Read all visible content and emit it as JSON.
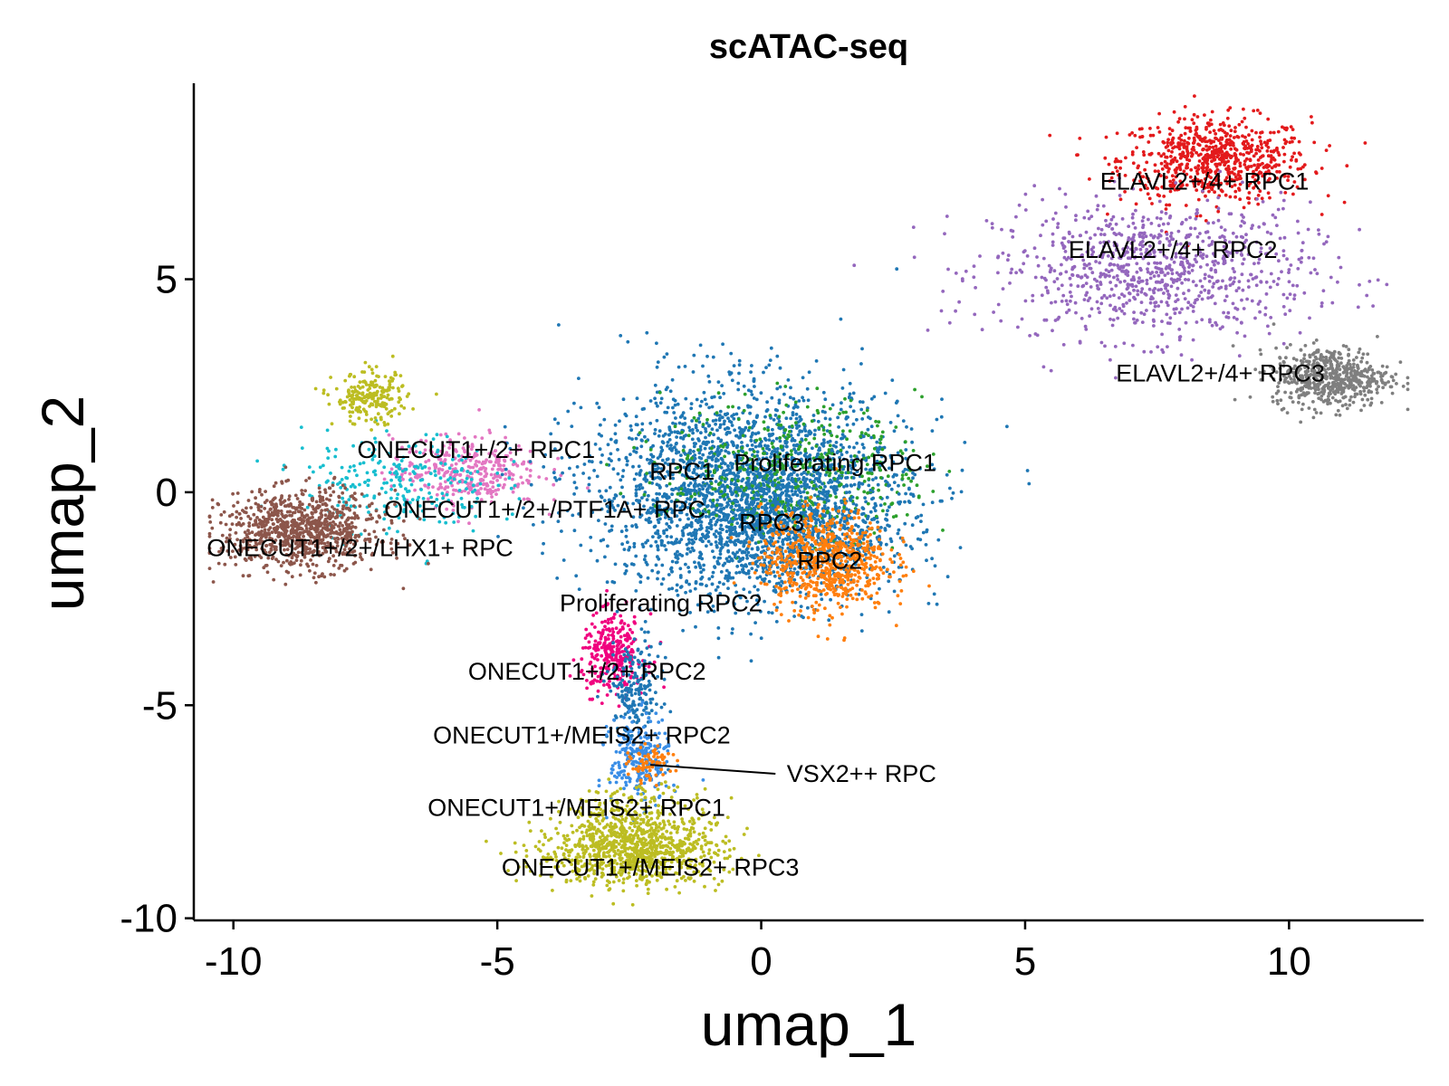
{
  "chart_data": {
    "type": "scatter",
    "title": "scATAC-seq",
    "xlabel": "umap_1",
    "ylabel": "umap_2",
    "xlim": [
      -10.75,
      12.55
    ],
    "ylim": [
      -10.05,
      9.6
    ],
    "x_ticks": [
      {
        "value": -10,
        "label": "-10"
      },
      {
        "value": -5,
        "label": "-5"
      },
      {
        "value": 0,
        "label": "0"
      },
      {
        "value": 5,
        "label": "5"
      },
      {
        "value": 10,
        "label": "10"
      }
    ],
    "y_ticks": [
      {
        "value": -10,
        "label": "-10"
      },
      {
        "value": -5,
        "label": "-5"
      },
      {
        "value": 0,
        "label": "0"
      },
      {
        "value": 5,
        "label": "5"
      }
    ],
    "grid": false,
    "legend": "none",
    "clusters": [
      {
        "name": "ELAVL2+/4+ RPC1",
        "color": "#e31a1c",
        "center": [
          8.6,
          7.8
        ],
        "spread": [
          0.9,
          0.5
        ],
        "n": 700
      },
      {
        "name": "ELAVL2+/4+ RPC2",
        "color": "#9467bd",
        "center": [
          7.4,
          5.2
        ],
        "spread": [
          1.5,
          0.8
        ],
        "n": 900
      },
      {
        "name": "ELAVL2+/4+ RPC3",
        "color": "#7f7f7f",
        "center": [
          10.8,
          2.7
        ],
        "spread": [
          0.55,
          0.35
        ],
        "n": 550
      },
      {
        "name": "ONECUT1+/2+ RPC1",
        "color": "#e377c2",
        "center": [
          -5.6,
          0.5
        ],
        "spread": [
          0.7,
          0.4
        ],
        "n": 350
      },
      {
        "name": "ONECUT1+/2+/PTF1A+ RPC",
        "color": "#17becf",
        "center": [
          -6.9,
          0.2
        ],
        "spread": [
          0.9,
          0.6
        ],
        "n": 250
      },
      {
        "name": "ONECUT1+/2+/LHX1+ RPC",
        "color": "#8c564b",
        "center": [
          -8.7,
          -0.9
        ],
        "spread": [
          0.75,
          0.45
        ],
        "n": 900
      },
      {
        "name": "RPC1",
        "color": "#1f77b4",
        "center": [
          -0.3,
          0.1
        ],
        "spread": [
          1.5,
          1.2
        ],
        "n": 2400
      },
      {
        "name": "Proliferating RPC1",
        "color": "#2ca02c",
        "center": [
          0.6,
          0.5
        ],
        "spread": [
          1.2,
          0.8
        ],
        "n": 450
      },
      {
        "name": "RPC3",
        "color": "#1f77b4",
        "center": [
          0.5,
          -0.9
        ],
        "spread": [
          1.0,
          0.8
        ],
        "n": 800
      },
      {
        "name": "RPC2",
        "color": "#ff7f0e",
        "center": [
          1.2,
          -1.6
        ],
        "spread": [
          0.6,
          0.6
        ],
        "n": 700
      },
      {
        "name": "Proliferating RPC2",
        "color": "#f0027f",
        "center": [
          -2.8,
          -3.8
        ],
        "spread": [
          0.3,
          0.45
        ],
        "n": 300
      },
      {
        "name": "ONECUT1+/2+ RPC2",
        "color": "#1f77b4",
        "center": [
          -2.4,
          -4.7
        ],
        "spread": [
          0.25,
          0.6
        ],
        "n": 200
      },
      {
        "name": "ONECUT1+/MEIS2+ RPC2",
        "color": "#3a8ee6",
        "center": [
          -2.3,
          -6.3
        ],
        "spread": [
          0.28,
          0.5
        ],
        "n": 250
      },
      {
        "name": "VSX2++ RPC",
        "color": "#ff7f0e",
        "center": [
          -2.1,
          -6.4
        ],
        "spread": [
          0.2,
          0.2
        ],
        "n": 70
      },
      {
        "name": "ONECUT1+/MEIS2+ RPC1",
        "color": "#bcbd22",
        "center": [
          -2.3,
          -7.8
        ],
        "spread": [
          0.7,
          0.45
        ],
        "n": 350
      },
      {
        "name": "ONECUT1+/MEIS2+ RPC3",
        "color": "#bcbd22",
        "center": [
          -2.5,
          -8.5
        ],
        "spread": [
          0.9,
          0.35
        ],
        "n": 700
      },
      {
        "name": "yellow-green cluster",
        "color": "#bcbd22",
        "center": [
          -7.4,
          2.2
        ],
        "spread": [
          0.35,
          0.3
        ],
        "n": 220
      }
    ],
    "labels": [
      {
        "text": "ELAVL2+/4+ RPC1",
        "x": 8.4,
        "y": 7.1
      },
      {
        "text": "ELAVL2+/4+ RPC2",
        "x": 7.8,
        "y": 5.5
      },
      {
        "text": "ELAVL2+/4+ RPC3",
        "x": 8.7,
        "y": 2.6
      },
      {
        "text": "ONECUT1+/2+ RPC1",
        "x": -5.4,
        "y": 0.8
      },
      {
        "text": "Proliferating RPC1",
        "x": 1.4,
        "y": 0.5
      },
      {
        "text": "RPC1",
        "x": -1.5,
        "y": 0.3
      },
      {
        "text": "ONECUT1+/2+/PTF1A+ RPC",
        "x": -4.1,
        "y": -0.6
      },
      {
        "text": "RPC3",
        "x": 0.2,
        "y": -0.9
      },
      {
        "text": "ONECUT1+/2+/LHX1+ RPC",
        "x": -7.6,
        "y": -1.5
      },
      {
        "text": "RPC2",
        "x": 1.3,
        "y": -1.8
      },
      {
        "text": "Proliferating RPC2",
        "x": -1.9,
        "y": -2.8
      },
      {
        "text": "ONECUT1+/2+ RPC2",
        "x": -3.3,
        "y": -4.4
      },
      {
        "text": "ONECUT1+/MEIS2+ RPC2",
        "x": -3.4,
        "y": -5.9
      },
      {
        "text": "VSX2++ RPC",
        "x": 1.9,
        "y": -6.8,
        "leader_to": [
          -2.1,
          -6.4
        ]
      },
      {
        "text": "ONECUT1+/MEIS2+ RPC1",
        "x": -3.5,
        "y": -7.6
      },
      {
        "text": "ONECUT1+/MEIS2+ RPC3",
        "x": -2.1,
        "y": -9.0
      }
    ]
  }
}
